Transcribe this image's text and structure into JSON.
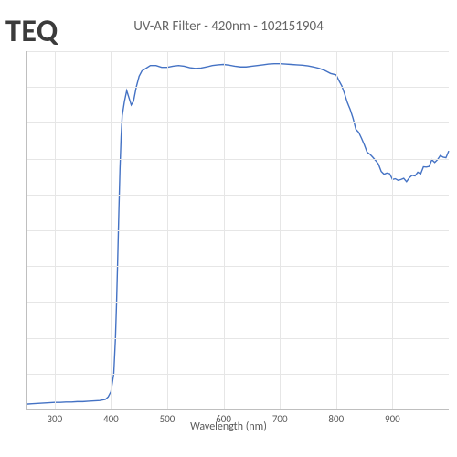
{
  "brand_text": "TEQ",
  "brand_color": "#3b3b3b",
  "chart": {
    "type": "line",
    "title": "UV-AR Filter - 420nm - 102151904",
    "title_fontsize": 15,
    "title_color": "#666666",
    "xlabel": "Wavelength (nm)",
    "xlabel_fontsize": 12,
    "xlabel_color": "#595959",
    "background_color": "#ffffff",
    "grid_color": "#e6e6e6",
    "axis_color": "#bfbfbf",
    "tick_fontsize": 11,
    "tick_color": "#595959",
    "xlim": [
      250,
      1000
    ],
    "ylim": [
      0,
      100
    ],
    "xticks": [
      300,
      400,
      500,
      600,
      700,
      800,
      900
    ],
    "y_gridlines": 10,
    "line_color": "#4472c4",
    "line_width": 1.4,
    "data": [
      [
        250,
        1.5
      ],
      [
        260,
        1.6
      ],
      [
        270,
        1.7
      ],
      [
        280,
        1.8
      ],
      [
        290,
        1.9
      ],
      [
        300,
        2.0
      ],
      [
        310,
        2.0
      ],
      [
        320,
        2.1
      ],
      [
        330,
        2.1
      ],
      [
        340,
        2.2
      ],
      [
        350,
        2.2
      ],
      [
        360,
        2.3
      ],
      [
        370,
        2.4
      ],
      [
        380,
        2.5
      ],
      [
        390,
        2.8
      ],
      [
        395,
        3.5
      ],
      [
        400,
        5.0
      ],
      [
        405,
        10
      ],
      [
        408,
        20
      ],
      [
        410,
        30
      ],
      [
        412,
        42
      ],
      [
        414,
        55
      ],
      [
        416,
        67
      ],
      [
        418,
        76
      ],
      [
        420,
        82
      ],
      [
        424,
        86
      ],
      [
        428,
        89
      ],
      [
        432,
        87
      ],
      [
        436,
        85
      ],
      [
        440,
        86
      ],
      [
        445,
        90
      ],
      [
        450,
        93
      ],
      [
        455,
        94.5
      ],
      [
        460,
        95
      ],
      [
        470,
        96
      ],
      [
        480,
        96
      ],
      [
        490,
        95.5
      ],
      [
        500,
        95.5
      ],
      [
        510,
        95.8
      ],
      [
        520,
        96
      ],
      [
        530,
        95.8
      ],
      [
        540,
        95.4
      ],
      [
        550,
        95.2
      ],
      [
        560,
        95.3
      ],
      [
        570,
        95.6
      ],
      [
        580,
        96
      ],
      [
        590,
        96.2
      ],
      [
        600,
        96.3
      ],
      [
        610,
        96.1
      ],
      [
        620,
        95.8
      ],
      [
        630,
        95.6
      ],
      [
        640,
        95.6
      ],
      [
        650,
        95.8
      ],
      [
        660,
        96
      ],
      [
        670,
        96.2
      ],
      [
        680,
        96.4
      ],
      [
        690,
        96.5
      ],
      [
        700,
        96.5
      ],
      [
        710,
        96.4
      ],
      [
        720,
        96.3
      ],
      [
        730,
        96.2
      ],
      [
        740,
        96.1
      ],
      [
        750,
        95.9
      ],
      [
        760,
        95.6
      ],
      [
        770,
        95.2
      ],
      [
        780,
        94.6
      ],
      [
        790,
        93.8
      ],
      [
        800,
        92.7
      ],
      [
        805,
        91.2
      ],
      [
        810,
        89.5
      ],
      [
        815,
        87.6
      ],
      [
        820,
        85.5
      ],
      [
        825,
        83.3
      ],
      [
        830,
        81.1
      ],
      [
        835,
        79.0
      ],
      [
        840,
        77.0
      ],
      [
        845,
        75.2
      ],
      [
        850,
        73.5
      ],
      [
        855,
        72.1
      ],
      [
        860,
        70.8
      ],
      [
        865,
        69.6
      ],
      [
        870,
        68.6
      ],
      [
        875,
        67.8
      ],
      [
        880,
        67.0
      ],
      [
        885,
        66.3
      ],
      [
        890,
        65.7
      ],
      [
        895,
        65.2
      ],
      [
        900,
        64.8
      ],
      [
        905,
        64.5
      ],
      [
        910,
        64.3
      ],
      [
        915,
        64.2
      ],
      [
        920,
        64.2
      ],
      [
        925,
        64.4
      ],
      [
        930,
        64.6
      ],
      [
        935,
        64.9
      ],
      [
        940,
        65.3
      ],
      [
        945,
        65.8
      ],
      [
        950,
        66.4
      ],
      [
        955,
        67.0
      ],
      [
        960,
        67.7
      ],
      [
        965,
        68.4
      ],
      [
        970,
        69.0
      ],
      [
        975,
        69.5
      ],
      [
        980,
        70.0
      ],
      [
        985,
        70.4
      ],
      [
        990,
        70.8
      ],
      [
        995,
        71.1
      ],
      [
        1000,
        71.3
      ]
    ],
    "noise_amp_nm_start": 800,
    "noise_amp": 0.9
  }
}
